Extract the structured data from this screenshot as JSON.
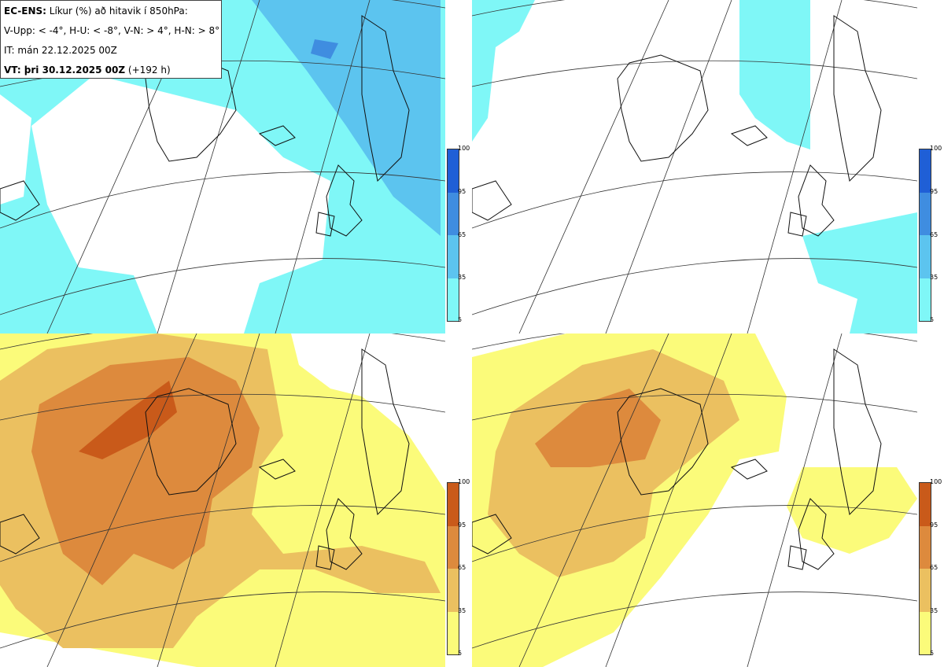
{
  "header": {
    "model": "EC-ENS:",
    "desc": "Líkur (%) að hitavik í 850hPa:",
    "thresholds": "V-Upp: < -4°, H-U: < -8°, V-N: > 4°, H-N: > 8°",
    "it": "IT: mán 22.12.2025 00Z",
    "vt_label": "VT: þri 30.12.2025 00Z",
    "vt_hours": "(+192 h)"
  },
  "colorbar": {
    "ticks": [
      "100",
      "95",
      "65",
      "35",
      "5"
    ],
    "cold_colors": [
      "#1f5fd6",
      "#3f8de0",
      "#5cc4ef",
      "#7ff7f7"
    ],
    "warm_colors": [
      "#c95a1a",
      "#dd8a3d",
      "#ebc060",
      "#fbfb7a"
    ]
  },
  "panels": [
    {
      "id": "cold-4",
      "palette": "cold"
    },
    {
      "id": "cold-8",
      "palette": "cold"
    },
    {
      "id": "warm-4",
      "palette": "warm"
    },
    {
      "id": "warm-8",
      "palette": "warm"
    }
  ]
}
